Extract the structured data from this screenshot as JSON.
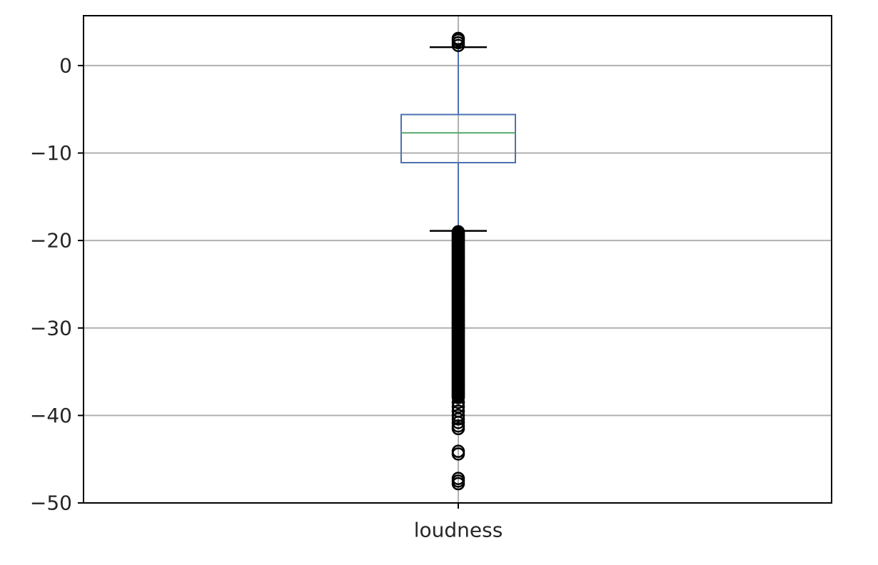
{
  "chart_data": {
    "type": "box",
    "title": "",
    "xlabel": "",
    "ylabel": "",
    "categories": [
      "loudness"
    ],
    "ylim": [
      -50,
      5.7
    ],
    "yticks": [
      0,
      -10,
      -20,
      -30,
      -40,
      -50
    ],
    "ytick_labels": [
      "0",
      "−10",
      "−20",
      "−30",
      "−40",
      "−50"
    ],
    "grid": true,
    "boxes": [
      {
        "name": "loudness",
        "q1": -11.1,
        "median": -7.7,
        "q3": -5.6,
        "whisker_low": -18.9,
        "whisker_high": 2.1,
        "fliers_high": [
          2.3,
          2.6,
          2.9,
          3.1
        ],
        "fliers_low_dense_range": [
          -38.0,
          -19.0
        ],
        "fliers_low": [
          -38.5,
          -39.0,
          -39.5,
          -40.0,
          -40.4,
          -40.8,
          -41.2,
          -41.5,
          -44.1,
          -44.4,
          -47.2,
          -47.5,
          -47.8
        ]
      }
    ],
    "colors": {
      "box": "#4c72b0",
      "median": "#55a868",
      "whisker_cap": "#000000",
      "flier": "#000000",
      "grid": "#b0b0b0"
    }
  }
}
